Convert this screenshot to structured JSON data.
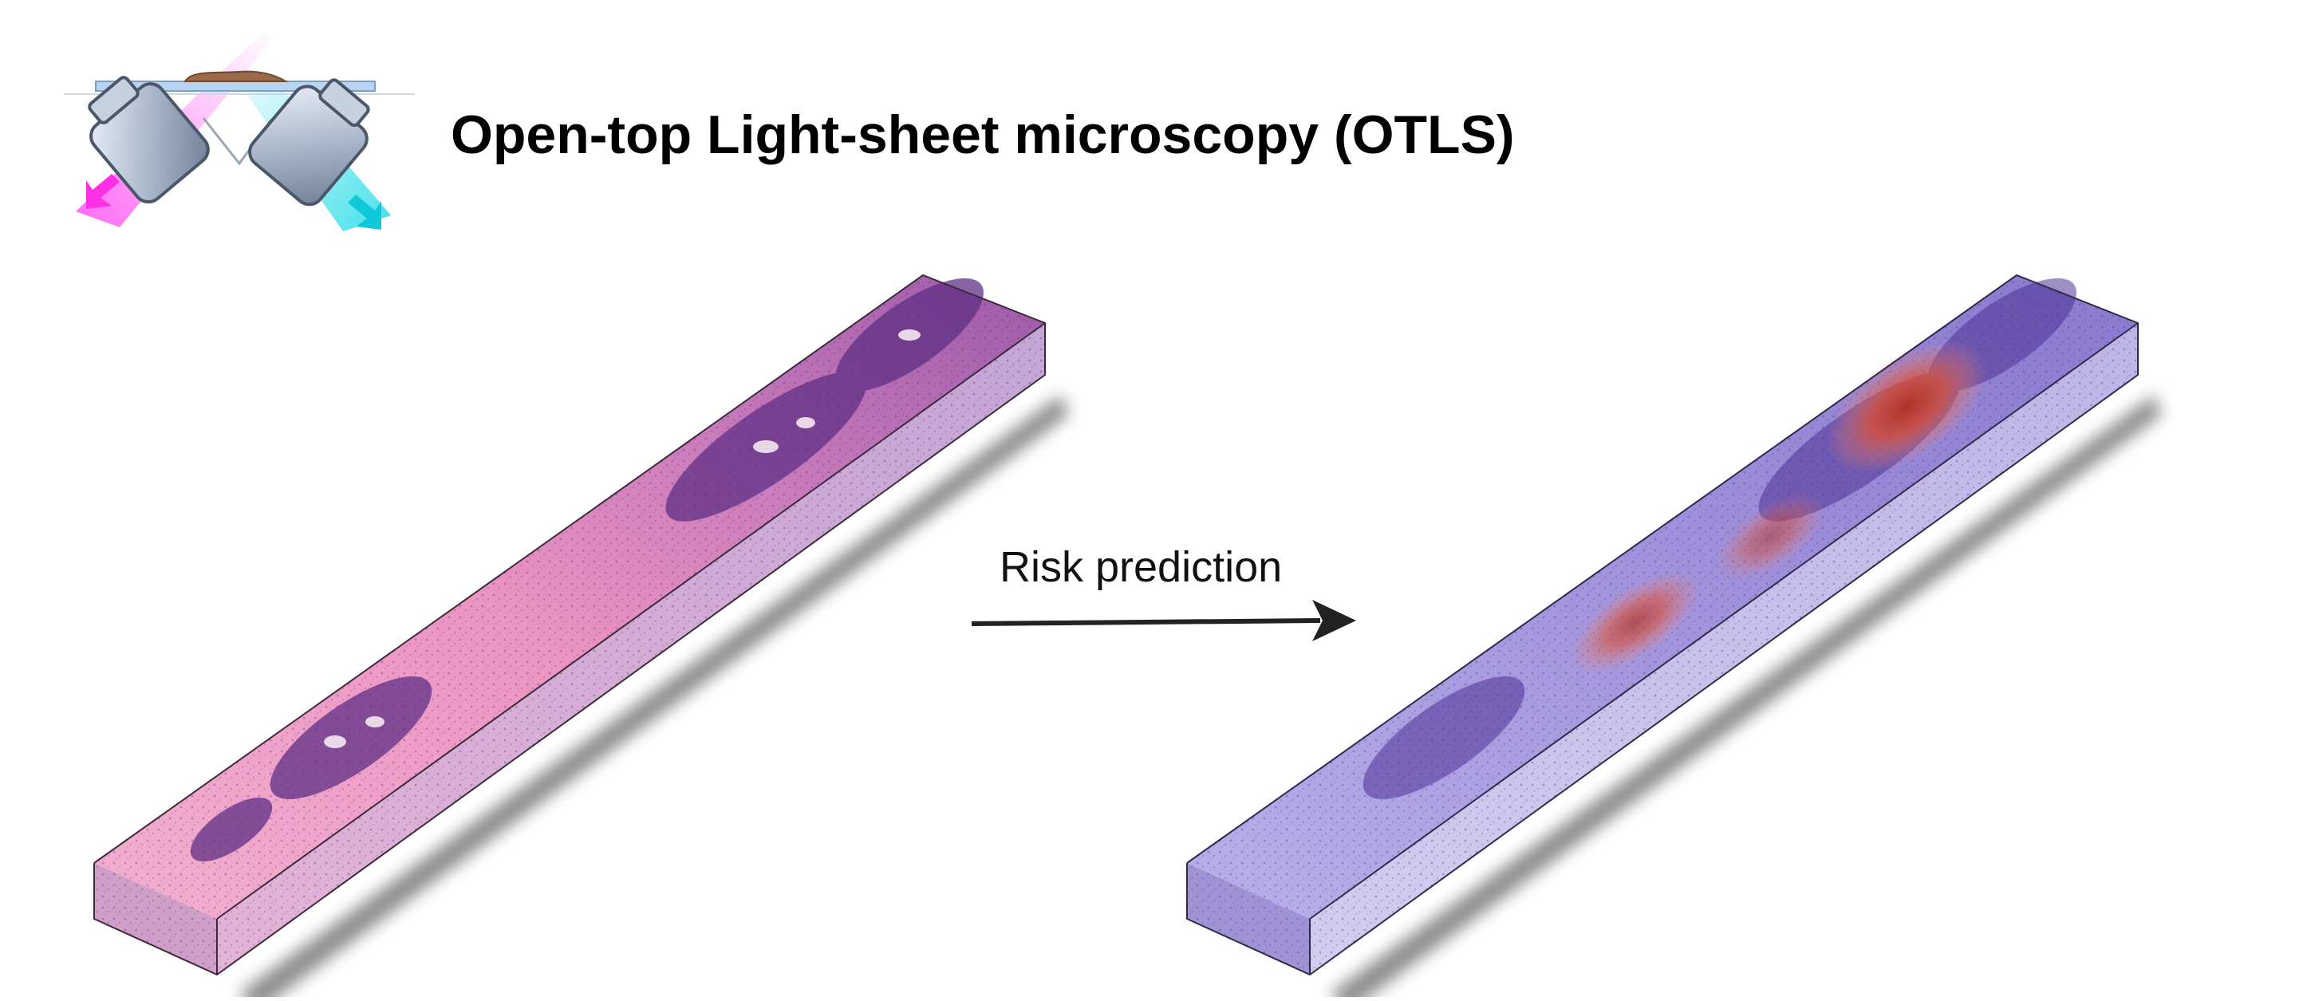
{
  "header": {
    "title": "Open-top Light-sheet microscopy (OTLS)"
  },
  "microscope_icon": {
    "excitation_color": "#ff3df2",
    "emission_color": "#19d9e6",
    "objective_color": "#9fb0c8",
    "glass_color": "#9ec3ea",
    "sample_color": "#9b6a4a"
  },
  "process": {
    "arrow_label": "Risk prediction"
  },
  "specimens": {
    "he_stain": {
      "top_color": "#ef9ec6",
      "gland_color": "#6f3d8f",
      "side_color": "#cfa6d1"
    },
    "heatmap_overlay": {
      "top_color": "#a79be0",
      "hot_color": "#e04a2a",
      "side_color": "#c7c3ea"
    }
  }
}
